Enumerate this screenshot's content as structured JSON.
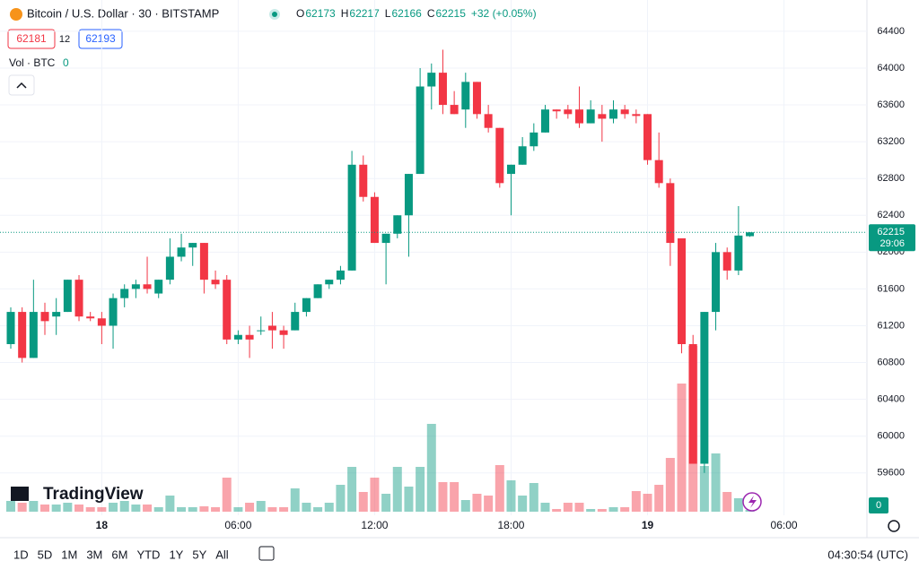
{
  "header": {
    "symbol": "Bitcoin / U.S. Dollar · 30 · BITSTAMP",
    "o_label": "O",
    "h_label": "H",
    "l_label": "L",
    "c_label": "C",
    "change": "+32 (+0.05%)",
    "bid": "62181",
    "spread": "12",
    "ask": "62193",
    "vol_label": "Vol · BTC",
    "vol_value": 0,
    "countdown": "29:06",
    "logo": "TradingView"
  },
  "toolbar": {
    "ranges": [
      "1D",
      "5D",
      "1M",
      "3M",
      "6M",
      "YTD",
      "1Y",
      "5Y",
      "All"
    ],
    "clock": "04:30:54 (UTC)"
  },
  "chart_data": {
    "type": "candlestick",
    "categories": [
      null,
      null,
      null,
      null,
      null,
      null,
      null,
      null,
      "18",
      null,
      null,
      null,
      null,
      null,
      null,
      null,
      null,
      null,
      null,
      null,
      "06:00",
      null,
      null,
      null,
      null,
      null,
      null,
      null,
      null,
      null,
      null,
      null,
      "12:00",
      null,
      null,
      null,
      null,
      null,
      null,
      null,
      null,
      null,
      null,
      null,
      "18:00",
      null,
      null,
      null,
      null,
      null,
      null,
      null,
      null,
      null,
      null,
      null,
      "19",
      null,
      null,
      null,
      null,
      null,
      null,
      null,
      null,
      null,
      null,
      null,
      "06:00",
      null
    ],
    "open": [
      61000,
      61350,
      60850,
      61350,
      61300,
      61350,
      61700,
      61300,
      61280,
      61200,
      61500,
      61600,
      61650,
      61550,
      61700,
      61950,
      62050,
      62100,
      61700,
      61700,
      61050,
      61100,
      61150,
      61200,
      61150,
      61150,
      61350,
      61500,
      61650,
      61700,
      61800,
      62950,
      62600,
      62100,
      62200,
      62400,
      62850,
      63800,
      63950,
      63600,
      63550,
      63850,
      63500,
      63350,
      62850,
      62950,
      63150,
      63300,
      63550,
      63550,
      63550,
      63400,
      63500,
      63450,
      63550,
      63500,
      63500,
      63000,
      62750,
      62150,
      61000,
      59700,
      61350,
      62000,
      61800,
      62173,
      null,
      null,
      null,
      null
    ],
    "high": [
      61400,
      61400,
      61700,
      61450,
      61500,
      61700,
      61750,
      61350,
      61350,
      61550,
      61650,
      61700,
      61950,
      61700,
      62150,
      62200,
      62100,
      62100,
      61800,
      61750,
      61150,
      61200,
      61300,
      61350,
      61200,
      61450,
      61500,
      61650,
      61700,
      61850,
      63100,
      63050,
      62650,
      62200,
      62400,
      62850,
      64000,
      64050,
      64200,
      63750,
      63950,
      63850,
      63600,
      63350,
      62950,
      63250,
      63400,
      63600,
      63550,
      63600,
      63800,
      63650,
      63600,
      63650,
      63600,
      63550,
      63500,
      63300,
      62800,
      62150,
      61100,
      61350,
      62100,
      62050,
      62500,
      62217,
      null,
      null,
      null,
      null
    ],
    "low": [
      60950,
      60800,
      60850,
      61100,
      61100,
      61350,
      61250,
      61250,
      61000,
      60950,
      61400,
      61500,
      61550,
      61500,
      61650,
      61900,
      61850,
      61550,
      61600,
      61000,
      61000,
      60850,
      61100,
      60950,
      60950,
      61150,
      61300,
      61500,
      61600,
      61650,
      61800,
      62550,
      62100,
      61650,
      62150,
      61950,
      62850,
      63550,
      63500,
      63500,
      63350,
      63450,
      63300,
      62700,
      62400,
      62950,
      63100,
      63300,
      63450,
      63450,
      63350,
      63400,
      63200,
      63400,
      63450,
      63400,
      62950,
      62700,
      61850,
      60900,
      59700,
      59600,
      61150,
      61700,
      61750,
      62166,
      null,
      null,
      null,
      null
    ],
    "close": [
      61350,
      60850,
      61350,
      61250,
      61350,
      61700,
      61300,
      61280,
      61200,
      61500,
      61600,
      61650,
      61600,
      61700,
      61950,
      62050,
      62100,
      61700,
      61650,
      61050,
      61100,
      61050,
      61150,
      61150,
      61100,
      61350,
      61500,
      61650,
      61700,
      61800,
      62950,
      62600,
      62100,
      62200,
      62400,
      62850,
      63800,
      63950,
      63600,
      63500,
      63850,
      63500,
      63350,
      62750,
      62950,
      63150,
      63300,
      63550,
      63530,
      63500,
      63400,
      63550,
      63450,
      63550,
      63500,
      63480,
      63000,
      62750,
      62100,
      61000,
      59700,
      61350,
      62000,
      61800,
      62180,
      62215,
      null,
      null,
      null,
      null
    ],
    "volume": [
      12,
      10,
      12,
      8,
      8,
      10,
      8,
      5,
      5,
      10,
      12,
      8,
      8,
      5,
      18,
      5,
      5,
      6,
      5,
      38,
      5,
      10,
      12,
      5,
      5,
      26,
      10,
      5,
      10,
      30,
      50,
      22,
      38,
      20,
      50,
      28,
      50,
      98,
      33,
      33,
      13,
      20,
      18,
      52,
      35,
      18,
      32,
      10,
      3,
      10,
      10,
      3,
      3,
      5,
      5,
      23,
      20,
      30,
      60,
      143,
      185,
      51,
      65,
      22,
      15,
      2,
      null,
      null,
      null,
      null
    ],
    "up_color": "#089981",
    "down_color": "#f23645",
    "ylim": [
      59140,
      64740
    ],
    "yticks": [
      59600,
      60000,
      60400,
      60800,
      61200,
      61600,
      62000,
      62400,
      62800,
      63200,
      63600,
      64000,
      64400
    ],
    "grid": true
  }
}
